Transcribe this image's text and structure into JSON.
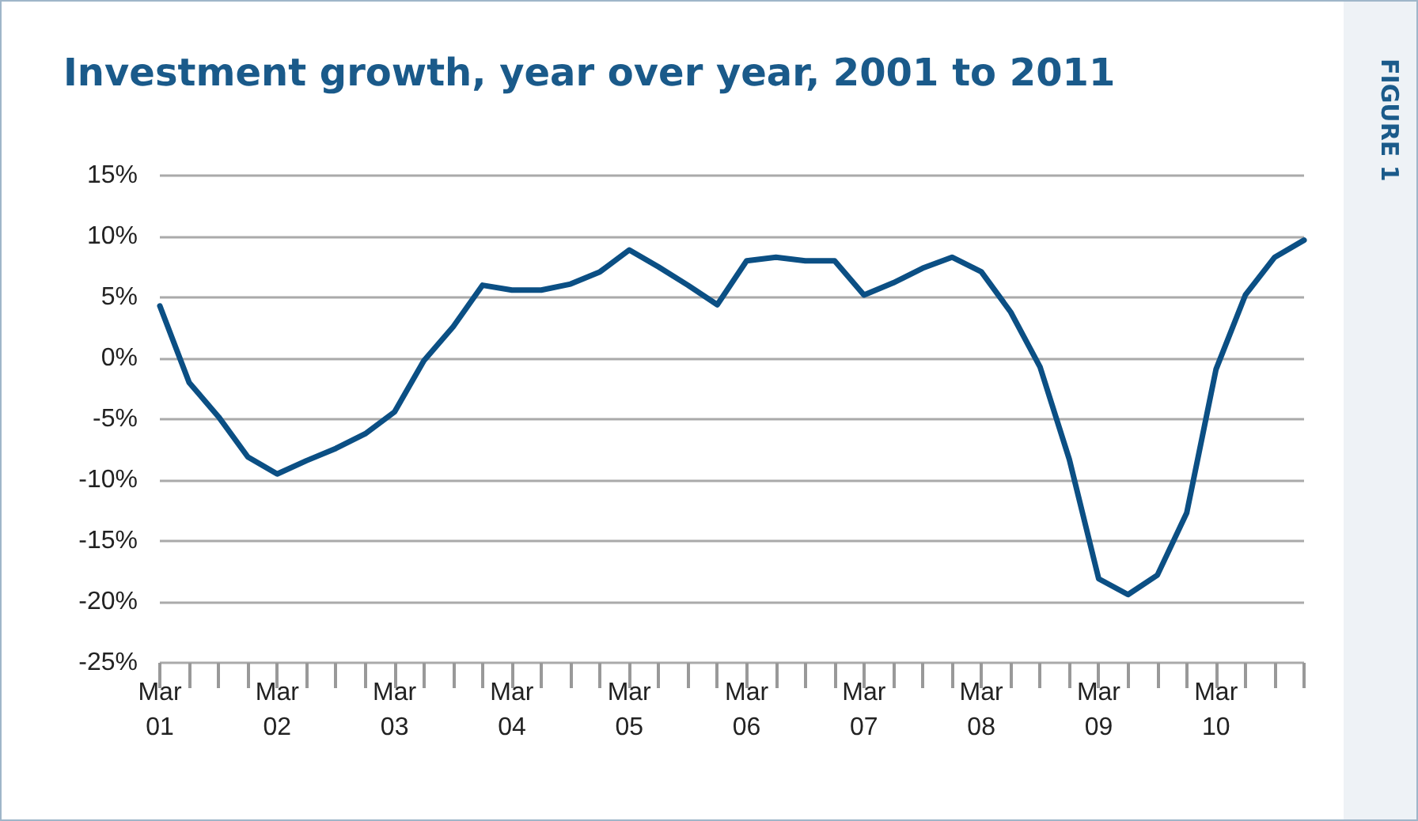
{
  "chart_data": {
    "type": "line",
    "title": "Investment growth, year over year, 2001 to 2011",
    "annotations": [
      "FIGURE 1"
    ],
    "categories": [
      "Mar 01",
      null,
      null,
      null,
      "Mar 02",
      null,
      null,
      null,
      "Mar 03",
      null,
      null,
      null,
      "Mar 04",
      null,
      null,
      null,
      "Mar 05",
      null,
      null,
      null,
      "Mar 06",
      null,
      null,
      null,
      "Mar 07",
      null,
      null,
      null,
      "Mar 08",
      null,
      null,
      null,
      "Mar 09",
      null,
      null,
      null,
      "Mar 10",
      null,
      null,
      null
    ],
    "series": [
      {
        "color": "#0b4f84",
        "values": [
          4.3,
          -2.0,
          -4.8,
          -8.1,
          -9.5,
          -8.4,
          -7.4,
          -6.2,
          -4.4,
          -0.2,
          2.6,
          6.0,
          5.6,
          5.6,
          6.1,
          7.1,
          8.9,
          7.5,
          6.0,
          4.4,
          8.0,
          8.3,
          8.0,
          8.0,
          5.2,
          6.2,
          7.4,
          8.3,
          7.1,
          3.8,
          -0.7,
          -8.3,
          -18.1,
          -19.4,
          -17.8,
          -12.7,
          -0.9,
          5.2,
          8.3,
          9.7
        ]
      }
    ],
    "ylim": [
      -25,
      15
    ],
    "yticks": [
      {
        "value": -25,
        "label": "-25%"
      },
      {
        "value": -20,
        "label": "-20%"
      },
      {
        "value": -15,
        "label": "-15%"
      },
      {
        "value": -10,
        "label": "-10%"
      },
      {
        "value": -5,
        "label": "-5%"
      },
      {
        "value": 0,
        "label": "0%"
      },
      {
        "value": 5,
        "label": "5%"
      },
      {
        "value": 10,
        "label": "10%"
      },
      {
        "value": 15,
        "label": "15%"
      }
    ],
    "grid": "y",
    "marker": "none",
    "line_style": "solid"
  }
}
